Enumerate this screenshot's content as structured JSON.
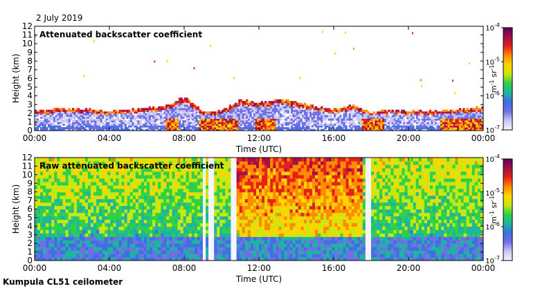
{
  "date": "2 July 2019",
  "footer": "Kumpula CL51 ceilometer",
  "colorscale": {
    "tick_labels": [
      "10-7",
      "10-6",
      "10-5",
      "10-4"
    ],
    "unit": "m-1 sr-1",
    "colors": [
      "#f5f5ff",
      "#c7c7f2",
      "#6f6fe6",
      "#3f6fe0",
      "#1fb4a0",
      "#2fd04a",
      "#c8e812",
      "#ffd400",
      "#ff8c00",
      "#e8201a",
      "#a0104a",
      "#600060"
    ]
  },
  "chart_data": [
    {
      "type": "heatmap",
      "title": "Attenuated backscatter coefficient",
      "xlabel": "Time (UTC)",
      "ylabel": "Height (km)",
      "xticks": [
        "00:00",
        "04:00",
        "08:00",
        "12:00",
        "16:00",
        "20:00",
        "00:00"
      ],
      "xlim": [
        0,
        24
      ],
      "yticks": [
        "0",
        "1",
        "2",
        "3",
        "4",
        "5",
        "6",
        "7",
        "8",
        "9",
        "10",
        "11",
        "12"
      ],
      "ylim": [
        0,
        12
      ],
      "color_scale": "log",
      "clim": [
        "1e-7",
        "1e-4"
      ],
      "boundary_layer_top_km": [
        [
          0,
          2.2
        ],
        [
          2,
          2.5
        ],
        [
          4,
          2.1
        ],
        [
          6,
          2.5
        ],
        [
          7,
          2.8
        ],
        [
          8,
          3.8
        ],
        [
          9,
          2.0
        ],
        [
          10,
          2.2
        ],
        [
          11,
          3.4
        ],
        [
          12,
          3.0
        ],
        [
          13,
          3.6
        ],
        [
          14,
          3.2
        ],
        [
          15,
          2.6
        ],
        [
          16,
          2.4
        ],
        [
          17,
          2.8
        ],
        [
          18,
          2.0
        ],
        [
          19,
          2.3
        ],
        [
          20,
          2.1
        ],
        [
          22,
          2.2
        ],
        [
          24,
          2.6
        ]
      ],
      "high_signal_periods_hours": [
        [
          6.9,
          7.6
        ],
        [
          8.7,
          10.8
        ],
        [
          11.7,
          12.8
        ],
        [
          17.4,
          18.6
        ],
        [
          21.7,
          24.0
        ]
      ]
    },
    {
      "type": "heatmap",
      "title": "Raw attenuated backscatter coefficient",
      "xlabel": "Time (UTC)",
      "ylabel": "Height (km)",
      "xticks": [
        "00:00",
        "04:00",
        "08:00",
        "12:00",
        "16:00",
        "20:00",
        "00:00"
      ],
      "xlim": [
        0,
        24
      ],
      "yticks": [
        "0",
        "1",
        "2",
        "3",
        "4",
        "5",
        "6",
        "7",
        "8",
        "9",
        "10",
        "11",
        "12"
      ],
      "ylim": [
        0,
        12
      ],
      "color_scale": "log",
      "clim": [
        "1e-7",
        "1e-4"
      ],
      "no_data_gaps_hours": [
        [
          8.9,
          9.1
        ],
        [
          9.3,
          9.6
        ],
        [
          10.5,
          10.8
        ],
        [
          17.6,
          17.9
        ]
      ],
      "high_noise_periods_hours": [
        [
          10.8,
          17.5
        ]
      ]
    }
  ]
}
